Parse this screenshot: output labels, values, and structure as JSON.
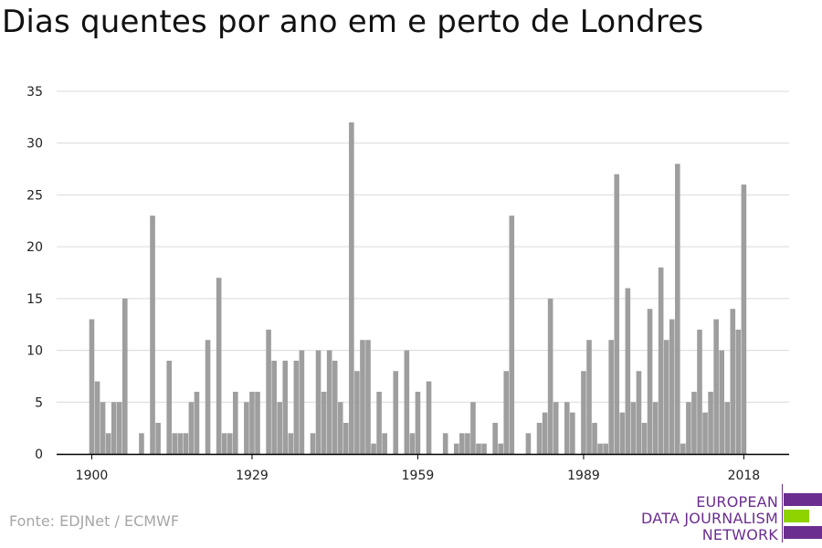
{
  "title": "Dias quentes por ano em e perto de Londres",
  "source": "Fonte: EDJNet / ECMWF",
  "logo": {
    "line1": "EUROPEAN",
    "line2": "DATA JOURNALISM",
    "line3": "NETWORK",
    "colors": {
      "purple": "#6b2d8f",
      "green": "#8fd400"
    }
  },
  "colors": {
    "bar": "#9e9e9e",
    "grid": "#d9d9d9",
    "axis": "#000000"
  },
  "chart_data": {
    "type": "bar",
    "title": "Dias quentes por ano em e perto de Londres",
    "xlabel": "",
    "ylabel": "",
    "xlim": [
      1900,
      2018
    ],
    "ylim": [
      0,
      35
    ],
    "yticks": [
      0,
      5,
      10,
      15,
      20,
      25,
      30,
      35
    ],
    "xticks": [
      1900,
      1929,
      1959,
      1989,
      2018
    ],
    "grid": true,
    "x": [
      1900,
      1901,
      1902,
      1903,
      1904,
      1905,
      1906,
      1907,
      1908,
      1909,
      1910,
      1911,
      1912,
      1913,
      1914,
      1915,
      1916,
      1917,
      1918,
      1919,
      1920,
      1921,
      1922,
      1923,
      1924,
      1925,
      1926,
      1927,
      1928,
      1929,
      1930,
      1931,
      1932,
      1933,
      1934,
      1935,
      1936,
      1937,
      1938,
      1939,
      1940,
      1941,
      1942,
      1943,
      1944,
      1945,
      1946,
      1947,
      1948,
      1949,
      1950,
      1951,
      1952,
      1953,
      1954,
      1955,
      1956,
      1957,
      1958,
      1959,
      1960,
      1961,
      1962,
      1963,
      1964,
      1965,
      1966,
      1967,
      1968,
      1969,
      1970,
      1971,
      1972,
      1973,
      1974,
      1975,
      1976,
      1977,
      1978,
      1979,
      1980,
      1981,
      1982,
      1983,
      1984,
      1985,
      1986,
      1987,
      1988,
      1989,
      1990,
      1991,
      1992,
      1993,
      1994,
      1995,
      1996,
      1997,
      1998,
      1999,
      2000,
      2001,
      2002,
      2003,
      2004,
      2005,
      2006,
      2007,
      2008,
      2009,
      2010,
      2011,
      2012,
      2013,
      2014,
      2015,
      2016,
      2017,
      2018
    ],
    "values": [
      13,
      7,
      5,
      2,
      5,
      5,
      15,
      0,
      0,
      2,
      0,
      23,
      3,
      0,
      9,
      2,
      2,
      2,
      5,
      6,
      0,
      11,
      0,
      17,
      2,
      2,
      6,
      0,
      5,
      6,
      6,
      0,
      12,
      9,
      5,
      9,
      2,
      9,
      10,
      0,
      2,
      10,
      6,
      10,
      9,
      5,
      3,
      32,
      8,
      11,
      11,
      1,
      6,
      2,
      0,
      8,
      0,
      10,
      2,
      6,
      0,
      7,
      0,
      0,
      2,
      0,
      1,
      2,
      2,
      5,
      1,
      1,
      0,
      3,
      1,
      8,
      23,
      0,
      0,
      2,
      0,
      3,
      4,
      15,
      5,
      0,
      5,
      4,
      0,
      8,
      11,
      3,
      1,
      1,
      11,
      27,
      4,
      16,
      5,
      8,
      3,
      14,
      5,
      18,
      11,
      13,
      28,
      1,
      5,
      6,
      12,
      4,
      6,
      13,
      10,
      5,
      14,
      12,
      26
    ]
  }
}
